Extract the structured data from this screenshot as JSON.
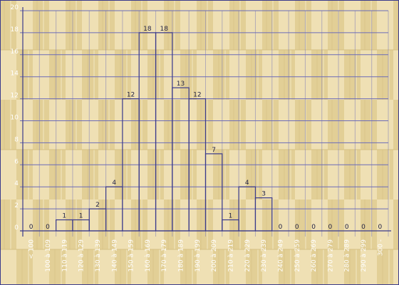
{
  "chart_data": {
    "type": "bar",
    "categories": [
      "< 100",
      "100 à 109",
      "110 à 119",
      "120 à 129",
      "130 à 139",
      "140 à 149",
      "150 à 159",
      "160 à 169",
      "170 à 179",
      "180 à 189",
      "190 à 199",
      "200 à 209",
      "210 à 219",
      "220 à 229",
      "230 à 239",
      "240 à 249",
      "250 à 259",
      "260 à 269",
      "270 à 279",
      "280 à 289",
      "290 à 299",
      "300 -"
    ],
    "values": [
      0,
      0,
      1,
      1,
      2,
      4,
      12,
      18,
      18,
      13,
      12,
      7,
      1,
      4,
      3,
      0,
      0,
      0,
      0,
      0,
      0,
      0
    ],
    "ylim": [
      0,
      20
    ],
    "yticks": [
      0,
      2,
      4,
      6,
      8,
      10,
      12,
      14,
      16,
      18,
      20
    ],
    "grid": true,
    "colors": {
      "bar_outline": "#3a3a8c",
      "grid": "#6b6bb8",
      "tick_text": "#ffffff",
      "value_text": "#222244",
      "frame": "#3a3a8c",
      "background": "#e8d8a8"
    }
  }
}
